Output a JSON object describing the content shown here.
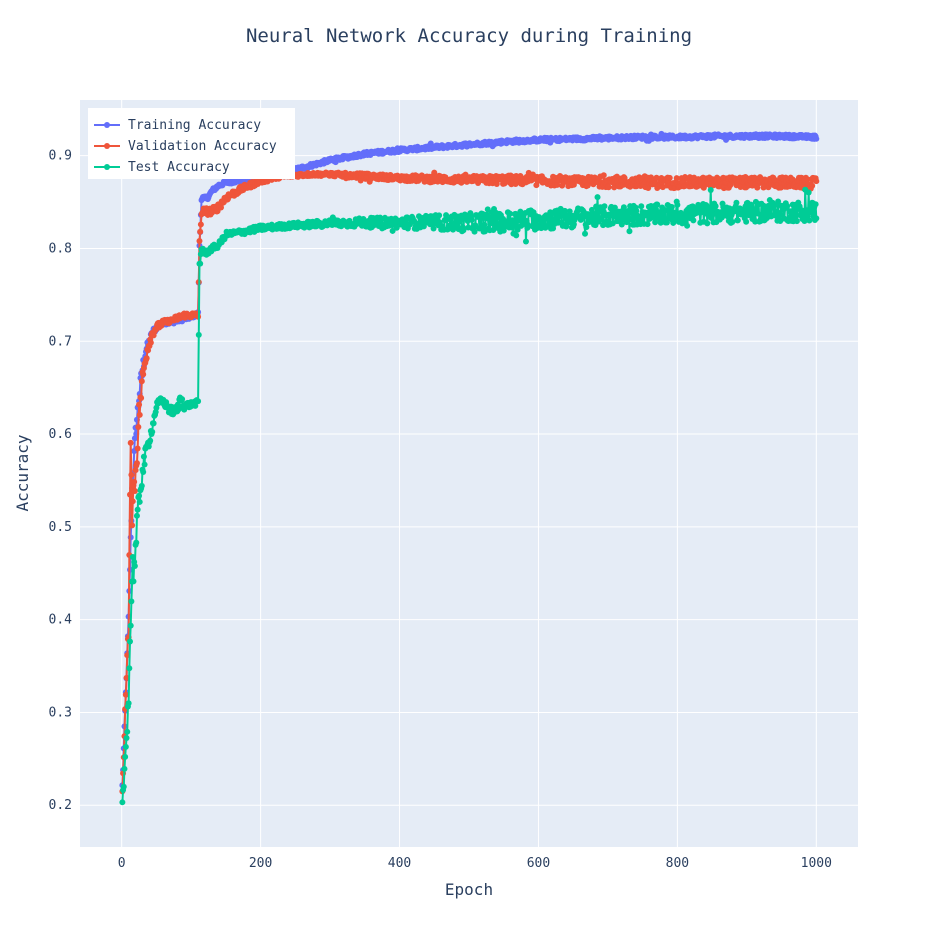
{
  "chart_data": {
    "type": "line",
    "title": "Neural Network Accuracy during Training",
    "xlabel": "Epoch",
    "ylabel": "Accuracy",
    "xlim": [
      -60,
      1060
    ],
    "ylim": [
      0.155,
      0.96
    ],
    "x_ticks": [
      0,
      200,
      400,
      600,
      800,
      1000
    ],
    "y_ticks": [
      0.2,
      0.3,
      0.4,
      0.5,
      0.6,
      0.7,
      0.8,
      0.9
    ],
    "grid": true,
    "legend_position": "top-left",
    "plot_background": "#E5ECF6",
    "grid_color": "#ffffff",
    "marker": "circle",
    "x_range_epochs": [
      1,
      1000
    ],
    "series": [
      {
        "name": "Training Accuracy",
        "color": "#636EFA",
        "x": [
          1,
          5,
          10,
          15,
          20,
          25,
          30,
          35,
          40,
          45,
          50,
          60,
          70,
          80,
          90,
          100,
          110,
          112,
          115,
          120,
          125,
          130,
          140,
          150,
          175,
          200,
          225,
          250,
          275,
          300,
          350,
          400,
          450,
          500,
          550,
          600,
          650,
          700,
          750,
          800,
          850,
          900,
          950,
          1000
        ],
        "y": [
          0.22,
          0.3,
          0.4,
          0.54,
          0.6,
          0.64,
          0.67,
          0.69,
          0.7,
          0.71,
          0.715,
          0.72,
          0.72,
          0.722,
          0.724,
          0.726,
          0.73,
          0.8,
          0.855,
          0.853,
          0.856,
          0.862,
          0.868,
          0.871,
          0.874,
          0.877,
          0.88,
          0.885,
          0.89,
          0.895,
          0.902,
          0.906,
          0.909,
          0.912,
          0.915,
          0.917,
          0.918,
          0.919,
          0.92,
          0.92,
          0.921,
          0.921,
          0.921,
          0.92
        ],
        "noise": [
          0.005,
          0.005,
          0.005,
          0.01,
          0.01,
          0.01,
          0.01,
          0.005,
          0.005,
          0.004,
          0.003,
          0.002,
          0.002,
          0.002,
          0.002,
          0.002,
          0.002,
          0.005,
          0.003,
          0.003,
          0.002,
          0.002,
          0.002,
          0.002,
          0.002,
          0.002,
          0.002,
          0.002,
          0.002,
          0.002,
          0.002,
          0.002,
          0.002,
          0.002,
          0.002,
          0.002,
          0.002,
          0.002,
          0.002,
          0.002,
          0.002,
          0.002,
          0.002,
          0.002
        ]
      },
      {
        "name": "Validation Accuracy",
        "color": "#EF553B",
        "x": [
          1,
          5,
          10,
          13,
          15,
          20,
          25,
          30,
          35,
          40,
          45,
          50,
          60,
          70,
          80,
          90,
          100,
          110,
          112,
          115,
          120,
          130,
          140,
          150,
          175,
          200,
          225,
          250,
          275,
          300,
          350,
          400,
          450,
          500,
          550,
          600,
          650,
          700,
          750,
          800,
          850,
          900,
          950,
          1000
        ],
        "y": [
          0.215,
          0.3,
          0.39,
          0.6,
          0.52,
          0.56,
          0.62,
          0.66,
          0.685,
          0.7,
          0.71,
          0.715,
          0.72,
          0.722,
          0.725,
          0.728,
          0.728,
          0.728,
          0.8,
          0.84,
          0.84,
          0.84,
          0.845,
          0.855,
          0.865,
          0.873,
          0.877,
          0.879,
          0.88,
          0.88,
          0.878,
          0.876,
          0.875,
          0.874,
          0.874,
          0.873,
          0.872,
          0.872,
          0.871,
          0.871,
          0.871,
          0.871,
          0.871,
          0.87
        ],
        "noise": [
          0.005,
          0.01,
          0.01,
          0.01,
          0.02,
          0.02,
          0.015,
          0.01,
          0.008,
          0.006,
          0.005,
          0.004,
          0.003,
          0.002,
          0.003,
          0.003,
          0.003,
          0.003,
          0.01,
          0.004,
          0.004,
          0.004,
          0.004,
          0.004,
          0.003,
          0.003,
          0.002,
          0.002,
          0.002,
          0.002,
          0.003,
          0.003,
          0.004,
          0.004,
          0.005,
          0.005,
          0.005,
          0.006,
          0.006,
          0.006,
          0.006,
          0.006,
          0.006,
          0.006
        ]
      },
      {
        "name": "Test Accuracy",
        "color": "#00CC96",
        "x": [
          1,
          5,
          10,
          15,
          20,
          25,
          30,
          35,
          40,
          45,
          50,
          55,
          60,
          65,
          70,
          80,
          85,
          90,
          100,
          110,
          112,
          115,
          120,
          125,
          130,
          140,
          150,
          175,
          200,
          250,
          300,
          350,
          400,
          450,
          500,
          550,
          600,
          650,
          700,
          750,
          800,
          850,
          900,
          950,
          1000
        ],
        "y": [
          0.2,
          0.25,
          0.32,
          0.45,
          0.47,
          0.53,
          0.56,
          0.58,
          0.595,
          0.61,
          0.63,
          0.635,
          0.635,
          0.63,
          0.625,
          0.625,
          0.64,
          0.63,
          0.632,
          0.634,
          0.78,
          0.8,
          0.795,
          0.797,
          0.8,
          0.804,
          0.815,
          0.818,
          0.822,
          0.825,
          0.827,
          0.828,
          0.828,
          0.828,
          0.828,
          0.829,
          0.831,
          0.833,
          0.835,
          0.836,
          0.837,
          0.838,
          0.839,
          0.84,
          0.84
        ],
        "noise": [
          0.005,
          0.01,
          0.015,
          0.02,
          0.02,
          0.015,
          0.01,
          0.008,
          0.006,
          0.005,
          0.004,
          0.004,
          0.004,
          0.004,
          0.005,
          0.005,
          0.005,
          0.004,
          0.003,
          0.003,
          0.01,
          0.005,
          0.003,
          0.003,
          0.003,
          0.003,
          0.003,
          0.003,
          0.003,
          0.003,
          0.004,
          0.005,
          0.006,
          0.008,
          0.01,
          0.011,
          0.011,
          0.011,
          0.011,
          0.011,
          0.011,
          0.011,
          0.011,
          0.011,
          0.011
        ]
      }
    ]
  }
}
